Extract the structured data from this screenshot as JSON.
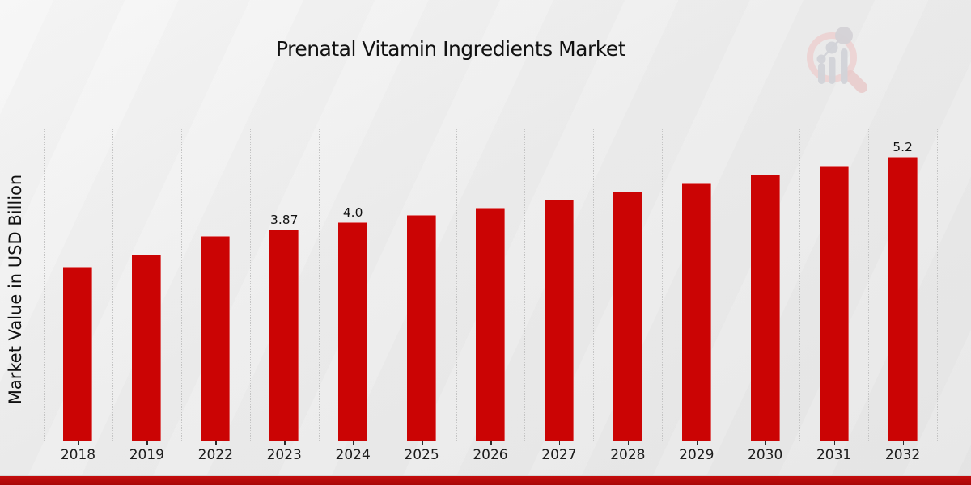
{
  "header": {
    "title": "Prenatal Vitamin Ingredients Market"
  },
  "axes": {
    "y_label": "Market Value in USD Billion"
  },
  "colors": {
    "bar": "#cb0404",
    "bottom_band": "#b20a0a",
    "grid": "#c5c5c5",
    "axis": "#c3c3c3",
    "text": "#111111",
    "logo_pink": "#ecd1d1",
    "logo_gray": "#d2d3d8"
  },
  "chart_data": {
    "type": "bar",
    "title": "Prenatal Vitamin Ingredients Market",
    "xlabel": "",
    "ylabel": "Market Value in USD Billion",
    "categories": [
      "2018",
      "2019",
      "2022",
      "2023",
      "2024",
      "2025",
      "2026",
      "2027",
      "2028",
      "2029",
      "2030",
      "2031",
      "2032"
    ],
    "values": [
      3.19,
      3.4,
      3.74,
      3.87,
      4.0,
      4.13,
      4.27,
      4.41,
      4.56,
      4.71,
      4.87,
      5.03,
      5.2
    ],
    "data_labels": [
      "",
      "",
      "",
      "3.87",
      "4.0",
      "",
      "",
      "",
      "",
      "",
      "",
      "",
      "5.2"
    ],
    "ylim": [
      0,
      5.7
    ],
    "bar_color": "#cb0404",
    "grid": "vertical dotted lines at category boundaries",
    "legend_position": "none"
  },
  "logo": {
    "name": "magnifier-bar-chart-watermark"
  }
}
